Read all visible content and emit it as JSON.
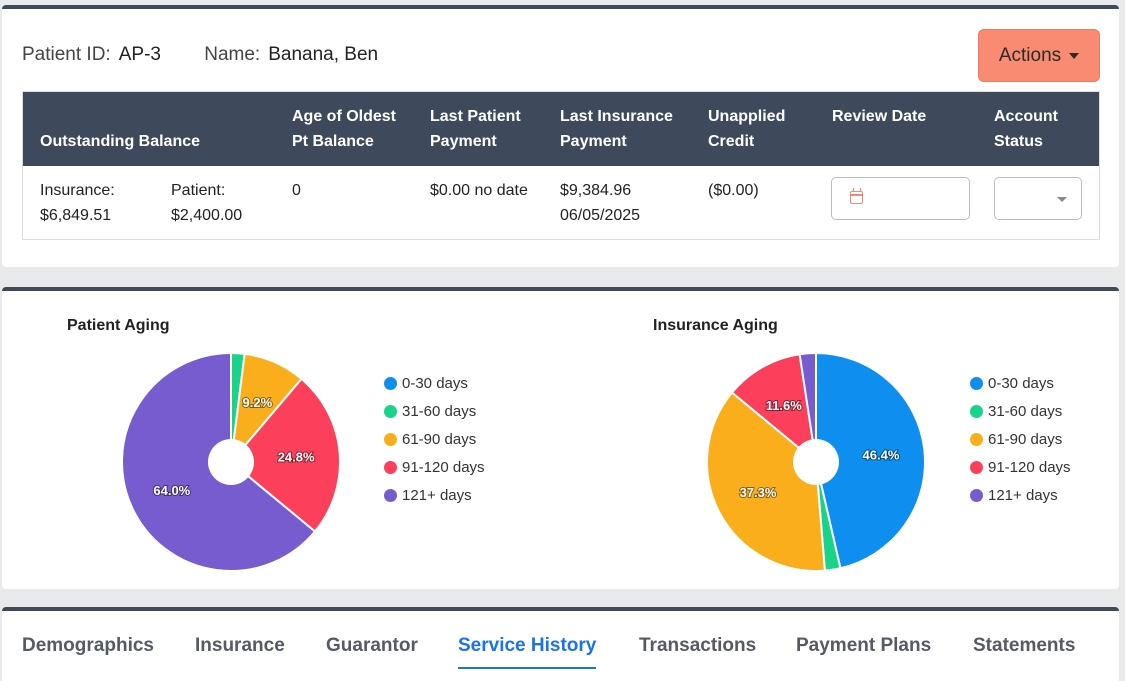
{
  "patient": {
    "id_label": "Patient ID:",
    "id_value": "AP-3",
    "name_label": "Name:",
    "name_value": "Banana, Ben"
  },
  "actions": {
    "label": "Actions"
  },
  "balance_table": {
    "headers": {
      "outstanding": "Outstanding Balance",
      "age_line1": "Age of Oldest",
      "age_line2": "Pt Balance",
      "last_patient_line1": "Last Patient",
      "last_patient_line2": "Payment",
      "last_insurance_line1": "Last Insurance",
      "last_insurance_line2": "Payment",
      "unapplied_line1": "Unapplied",
      "unapplied_line2": "Credit",
      "review_date": "Review Date",
      "status_line1": "Account",
      "status_line2": "Status"
    },
    "row": {
      "insurance_label": "Insurance:",
      "insurance_value": "$6,849.51",
      "patient_label": "Patient:",
      "patient_value": "$2,400.00",
      "age_oldest": "0",
      "last_patient_payment": "$0.00 no date",
      "last_insurance_amount": "$9,384.96",
      "last_insurance_date": "06/05/2025",
      "unapplied_credit": "($0.00)"
    }
  },
  "colors": {
    "0-30 days": "#0e8ff0",
    "31-60 days": "#1ad38a",
    "61-90 days": "#fbae1c",
    "91-120 days": "#fc3f5a",
    "121+ days": "#775ccf"
  },
  "chart_data": [
    {
      "type": "pie",
      "title": "Patient Aging",
      "categories": [
        "0-30 days",
        "31-60 days",
        "61-90 days",
        "91-120 days",
        "121+ days"
      ],
      "values": [
        0,
        2,
        9.2,
        24.8,
        64.0
      ],
      "labels": [
        "",
        "",
        "9.2%",
        "24.8%",
        "64.0%"
      ],
      "donut": true,
      "legend": "right"
    },
    {
      "type": "pie",
      "title": "Insurance Aging",
      "categories": [
        "0-30 days",
        "31-60 days",
        "61-90 days",
        "91-120 days",
        "121+ days"
      ],
      "values": [
        46.4,
        2.3,
        37.3,
        11.6,
        2.4
      ],
      "labels": [
        "46.4%",
        "",
        "37.3%",
        "11.6%",
        ""
      ],
      "donut": true,
      "legend": "right"
    }
  ],
  "tabs": [
    {
      "label": "Demographics",
      "active": false
    },
    {
      "label": "Insurance",
      "active": false
    },
    {
      "label": "Guarantor",
      "active": false
    },
    {
      "label": "Service History",
      "active": true
    },
    {
      "label": "Transactions",
      "active": false
    },
    {
      "label": "Payment Plans",
      "active": false
    },
    {
      "label": "Statements",
      "active": false
    }
  ]
}
